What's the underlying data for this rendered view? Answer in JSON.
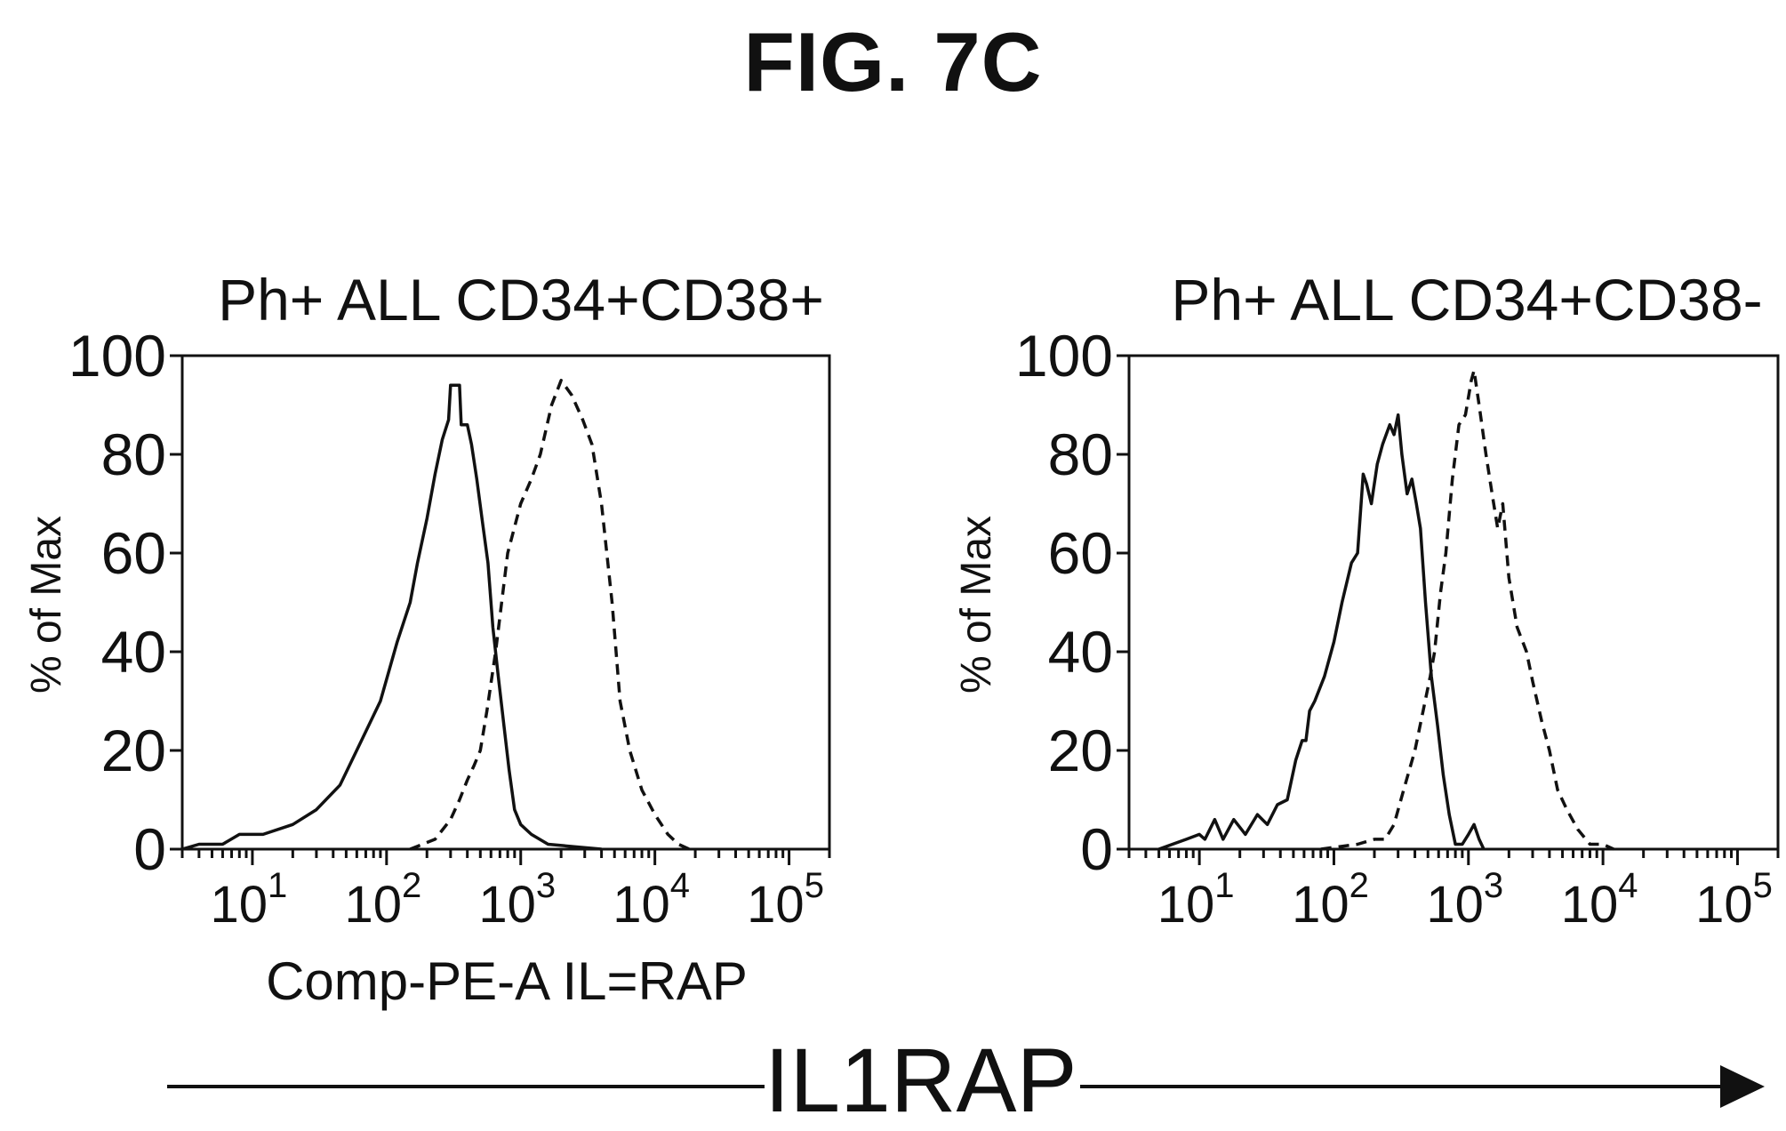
{
  "figure": {
    "title": "FIG. 7C",
    "footer_label": "IL1RAP"
  },
  "chart_data": [
    {
      "type": "line",
      "title": "Ph+ ALL CD34+CD38+",
      "xlabel": "Comp-PE-A IL=RAP",
      "ylabel": "% of Max",
      "x_scale": "log",
      "xlim": [
        3,
        200000
      ],
      "ylim": [
        0,
        100
      ],
      "x_ticks": [
        {
          "base": "10",
          "exp": "1",
          "value": 10
        },
        {
          "base": "10",
          "exp": "2",
          "value": 100
        },
        {
          "base": "10",
          "exp": "3",
          "value": 1000
        },
        {
          "base": "10",
          "exp": "4",
          "value": 10000
        },
        {
          "base": "10",
          "exp": "5",
          "value": 100000
        }
      ],
      "y_ticks": [
        "0",
        "20",
        "40",
        "60",
        "80",
        "100"
      ],
      "grid": false,
      "series": [
        {
          "style": "solid",
          "points": [
            [
              3,
              0
            ],
            [
              4,
              1
            ],
            [
              6,
              1
            ],
            [
              8,
              3
            ],
            [
              12,
              3
            ],
            [
              20,
              5
            ],
            [
              30,
              8
            ],
            [
              45,
              13
            ],
            [
              65,
              22
            ],
            [
              90,
              30
            ],
            [
              120,
              42
            ],
            [
              150,
              50
            ],
            [
              170,
              58
            ],
            [
              200,
              67
            ],
            [
              230,
              76
            ],
            [
              260,
              83
            ],
            [
              290,
              87
            ],
            [
              300,
              94
            ],
            [
              330,
              94
            ],
            [
              350,
              94
            ],
            [
              360,
              86
            ],
            [
              400,
              86
            ],
            [
              430,
              82
            ],
            [
              470,
              75
            ],
            [
              520,
              66
            ],
            [
              570,
              58
            ],
            [
              620,
              45
            ],
            [
              680,
              35
            ],
            [
              750,
              25
            ],
            [
              820,
              16
            ],
            [
              900,
              8
            ],
            [
              1000,
              5
            ],
            [
              1200,
              3
            ],
            [
              1600,
              1
            ],
            [
              2500,
              0.5
            ],
            [
              4000,
              0
            ]
          ]
        },
        {
          "style": "dashed",
          "points": [
            [
              150,
              0
            ],
            [
              230,
              2
            ],
            [
              300,
              6
            ],
            [
              350,
              10
            ],
            [
              400,
              14
            ],
            [
              450,
              17
            ],
            [
              500,
              20
            ],
            [
              560,
              28
            ],
            [
              650,
              40
            ],
            [
              800,
              60
            ],
            [
              1000,
              70
            ],
            [
              1200,
              75
            ],
            [
              1400,
              80
            ],
            [
              1700,
              90
            ],
            [
              2000,
              95
            ],
            [
              2400,
              92
            ],
            [
              2900,
              87
            ],
            [
              3400,
              82
            ],
            [
              4000,
              70
            ],
            [
              4800,
              50
            ],
            [
              5500,
              30
            ],
            [
              6500,
              20
            ],
            [
              8000,
              12
            ],
            [
              10000,
              7
            ],
            [
              12500,
              3
            ],
            [
              15000,
              1
            ],
            [
              18000,
              0
            ]
          ]
        }
      ]
    },
    {
      "type": "line",
      "title": "Ph+ ALL CD34+CD38-",
      "xlabel": "",
      "ylabel": "% of Max",
      "x_scale": "log",
      "xlim": [
        3,
        200000
      ],
      "ylim": [
        0,
        100
      ],
      "x_ticks": [
        {
          "base": "10",
          "exp": "1",
          "value": 10
        },
        {
          "base": "10",
          "exp": "2",
          "value": 100
        },
        {
          "base": "10",
          "exp": "3",
          "value": 1000
        },
        {
          "base": "10",
          "exp": "4",
          "value": 10000
        },
        {
          "base": "10",
          "exp": "5",
          "value": 100000
        }
      ],
      "y_ticks": [
        "0",
        "20",
        "40",
        "60",
        "80",
        "100"
      ],
      "grid": false,
      "series": [
        {
          "style": "solid",
          "points": [
            [
              5,
              0
            ],
            [
              8,
              2
            ],
            [
              10,
              3
            ],
            [
              11,
              2
            ],
            [
              13,
              6
            ],
            [
              15,
              2
            ],
            [
              18,
              6
            ],
            [
              22,
              3
            ],
            [
              27,
              7
            ],
            [
              32,
              5
            ],
            [
              38,
              9
            ],
            [
              45,
              10
            ],
            [
              52,
              18
            ],
            [
              58,
              22
            ],
            [
              62,
              22
            ],
            [
              66,
              28
            ],
            [
              72,
              30
            ],
            [
              85,
              35
            ],
            [
              100,
              42
            ],
            [
              115,
              50
            ],
            [
              135,
              58
            ],
            [
              150,
              60
            ],
            [
              165,
              76
            ],
            [
              175,
              74
            ],
            [
              190,
              70
            ],
            [
              210,
              78
            ],
            [
              230,
              82
            ],
            [
              260,
              86
            ],
            [
              280,
              84
            ],
            [
              300,
              88
            ],
            [
              320,
              80
            ],
            [
              350,
              72
            ],
            [
              380,
              75
            ],
            [
              410,
              70
            ],
            [
              440,
              65
            ],
            [
              480,
              50
            ],
            [
              530,
              35
            ],
            [
              590,
              25
            ],
            [
              650,
              15
            ],
            [
              720,
              7
            ],
            [
              800,
              1
            ],
            [
              900,
              1
            ],
            [
              1000,
              3
            ],
            [
              1100,
              5
            ],
            [
              1200,
              2
            ],
            [
              1300,
              0
            ]
          ]
        },
        {
          "style": "dashed",
          "points": [
            [
              80,
              0
            ],
            [
              150,
              1
            ],
            [
              200,
              2
            ],
            [
              240,
              2
            ],
            [
              280,
              5
            ],
            [
              330,
              12
            ],
            [
              400,
              20
            ],
            [
              460,
              28
            ],
            [
              520,
              35
            ],
            [
              560,
              40
            ],
            [
              620,
              52
            ],
            [
              680,
              60
            ],
            [
              760,
              75
            ],
            [
              850,
              86
            ],
            [
              950,
              88
            ],
            [
              1050,
              95
            ],
            [
              1100,
              97
            ],
            [
              1200,
              90
            ],
            [
              1350,
              80
            ],
            [
              1500,
              72
            ],
            [
              1650,
              65
            ],
            [
              1800,
              70
            ],
            [
              2000,
              55
            ],
            [
              2300,
              45
            ],
            [
              2700,
              40
            ],
            [
              3000,
              34
            ],
            [
              3500,
              26
            ],
            [
              4000,
              20
            ],
            [
              4600,
              12
            ],
            [
              5400,
              8
            ],
            [
              6500,
              4
            ],
            [
              8000,
              1
            ],
            [
              10000,
              1
            ],
            [
              12000,
              0
            ]
          ]
        }
      ]
    }
  ]
}
